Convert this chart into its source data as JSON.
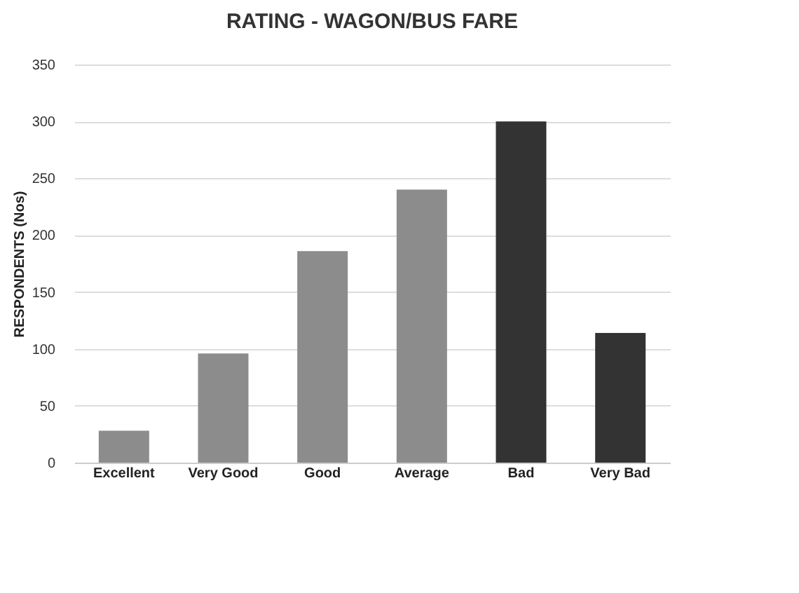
{
  "chart_data": {
    "type": "bar",
    "title": "RATING - WAGON/BUS FARE",
    "ylabel": "RESPONDENTS (Nos)",
    "categories": [
      "Excellent",
      "Very Good",
      "Good",
      "Average",
      "Bad",
      "Very Bad"
    ],
    "values": [
      28,
      96,
      186,
      240,
      300,
      114
    ],
    "colors": [
      "#8c8c8c",
      "#8c8c8c",
      "#8c8c8c",
      "#8c8c8c",
      "#333333",
      "#333333"
    ],
    "ylim": [
      0,
      350
    ],
    "yticks": [
      0,
      50,
      100,
      150,
      200,
      250,
      300,
      350
    ],
    "grid": "y"
  }
}
